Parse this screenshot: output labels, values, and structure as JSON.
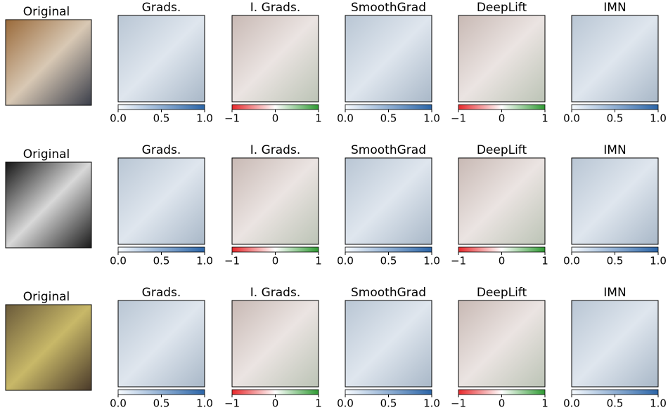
{
  "rows": [
    {
      "original": "Original",
      "panels": [
        {
          "title": "Grads.",
          "colorbar": {
            "lim": [
              0,
              1
            ],
            "ticks": [
              {
                "value": 0,
                "label": "0.0"
              },
              0.5,
              {
                "value": 1,
                "label": "1.0"
              }
            ],
            "cmap": [
              "#f7fbff",
              "#2b65a8"
            ]
          }
        },
        {
          "title": "I. Grads.",
          "colorbar": {
            "lim": [
              -1,
              1
            ],
            "ticks": [
              {
                "value": -1,
                "label": "−1"
              },
              0,
              1
            ],
            "cmap": [
              "#e8282b",
              "#ffffff",
              "#2e9a32"
            ]
          }
        },
        {
          "title": "SmoothGrad",
          "colorbar": {
            "lim": [
              0,
              1
            ],
            "ticks": [
              {
                "value": 0,
                "label": "0.0"
              },
              0.5,
              {
                "value": 1,
                "label": "1.0"
              }
            ],
            "cmap": [
              "#f7fbff",
              "#2b65a8"
            ]
          }
        },
        {
          "title": "DeepLift",
          "colorbar": {
            "lim": [
              -1,
              1
            ],
            "ticks": [
              {
                "value": -1,
                "label": "−1"
              },
              0,
              1
            ],
            "cmap": [
              "#e8282b",
              "#ffffff",
              "#2e9a32"
            ]
          }
        },
        {
          "title": "IMN",
          "colorbar": {
            "lim": [
              0,
              1
            ],
            "ticks": [
              {
                "value": 0,
                "label": "0.0"
              },
              0.5,
              {
                "value": 1,
                "label": "1.0"
              }
            ],
            "cmap": [
              "#f7fbff",
              "#2b65a8"
            ]
          }
        }
      ]
    },
    {
      "original": "Original",
      "panels": [
        {
          "title": "Grads.",
          "colorbar": {
            "lim": [
              0,
              1
            ],
            "ticks": [
              {
                "value": 0,
                "label": "0.0"
              },
              0.5,
              {
                "value": 1,
                "label": "1.0"
              }
            ],
            "cmap": [
              "#f7fbff",
              "#2b65a8"
            ]
          }
        },
        {
          "title": "I. Grads.",
          "colorbar": {
            "lim": [
              -1,
              1
            ],
            "ticks": [
              {
                "value": -1,
                "label": "−1"
              },
              0,
              1
            ],
            "cmap": [
              "#e8282b",
              "#ffffff",
              "#2e9a32"
            ]
          }
        },
        {
          "title": "SmoothGrad",
          "colorbar": {
            "lim": [
              0,
              1
            ],
            "ticks": [
              {
                "value": 0,
                "label": "0.0"
              },
              0.5,
              {
                "value": 1,
                "label": "1.0"
              }
            ],
            "cmap": [
              "#f7fbff",
              "#2b65a8"
            ]
          }
        },
        {
          "title": "DeepLift",
          "colorbar": {
            "lim": [
              -1,
              1
            ],
            "ticks": [
              {
                "value": -1,
                "label": "−1"
              },
              0,
              1
            ],
            "cmap": [
              "#e8282b",
              "#ffffff",
              "#2e9a32"
            ]
          }
        },
        {
          "title": "IMN",
          "colorbar": {
            "lim": [
              0,
              1
            ],
            "ticks": [
              {
                "value": 0,
                "label": "0.0"
              },
              0.5,
              {
                "value": 1,
                "label": "1.0"
              }
            ],
            "cmap": [
              "#f7fbff",
              "#2b65a8"
            ]
          }
        }
      ]
    },
    {
      "original": "Original",
      "panels": [
        {
          "title": "Grads.",
          "colorbar": {
            "lim": [
              0,
              1
            ],
            "ticks": [
              {
                "value": 0,
                "label": "0.0"
              },
              0.5,
              {
                "value": 1,
                "label": "1.0"
              }
            ],
            "cmap": [
              "#f7fbff",
              "#2b65a8"
            ]
          }
        },
        {
          "title": "I. Grads.",
          "colorbar": {
            "lim": [
              -1,
              1
            ],
            "ticks": [
              {
                "value": -1,
                "label": "−1"
              },
              0,
              1
            ],
            "cmap": [
              "#e8282b",
              "#ffffff",
              "#2e9a32"
            ]
          }
        },
        {
          "title": "SmoothGrad",
          "colorbar": {
            "lim": [
              0,
              1
            ],
            "ticks": [
              {
                "value": 0,
                "label": "0.0"
              },
              0.5,
              {
                "value": 1,
                "label": "1.0"
              }
            ],
            "cmap": [
              "#f7fbff",
              "#2b65a8"
            ]
          }
        },
        {
          "title": "DeepLift",
          "colorbar": {
            "lim": [
              -1,
              1
            ],
            "ticks": [
              {
                "value": -1,
                "label": "−1"
              },
              0,
              1
            ],
            "cmap": [
              "#e8282b",
              "#ffffff",
              "#2e9a32"
            ]
          }
        },
        {
          "title": "IMN",
          "colorbar": {
            "lim": [
              0,
              1
            ],
            "ticks": [
              {
                "value": 0,
                "label": "0.0"
              },
              0.5,
              {
                "value": 1,
                "label": "1.0"
              }
            ],
            "cmap": [
              "#f7fbff",
              "#2b65a8"
            ]
          }
        }
      ]
    }
  ]
}
